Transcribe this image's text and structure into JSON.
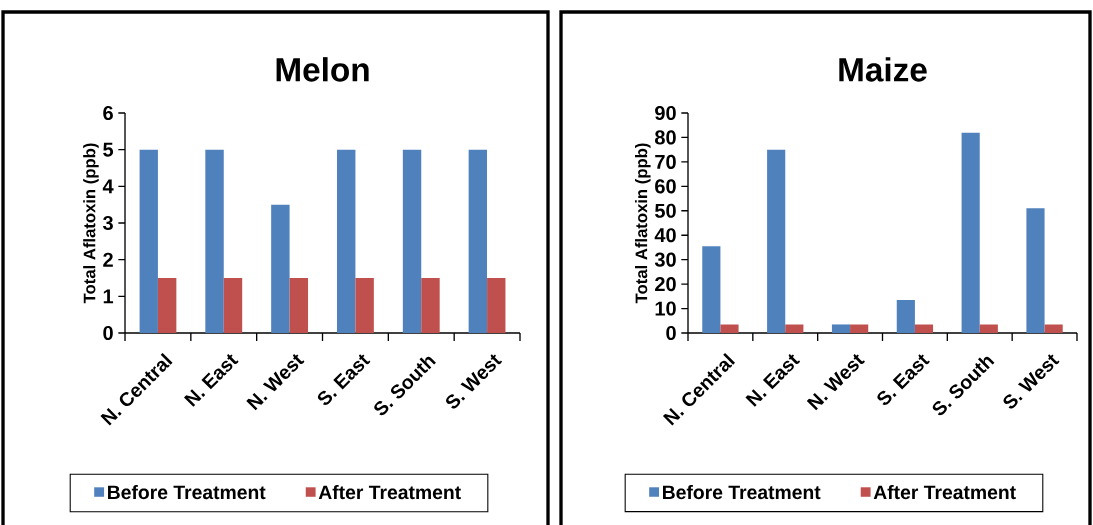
{
  "chart_data": [
    {
      "type": "bar",
      "title": "Melon",
      "ylabel": "Total Aflatoxin (ppb)",
      "categories": [
        "N. Central",
        "N. East",
        "N. West",
        "S. East",
        "S. South",
        "S. West"
      ],
      "series": [
        {
          "name": "Before Treatment",
          "color": "#4f81bd",
          "values": [
            5,
            5,
            3.5,
            5,
            5,
            5
          ]
        },
        {
          "name": "After Treatment",
          "color": "#c0504d",
          "values": [
            1.5,
            1.5,
            1.5,
            1.5,
            1.5,
            1.5
          ]
        }
      ],
      "ylim": [
        0,
        6
      ],
      "yticks": [
        0,
        1,
        2,
        3,
        4,
        5,
        6
      ],
      "legend": "bottom",
      "grid": false
    },
    {
      "type": "bar",
      "title": "Maize",
      "ylabel": "Total Aflatoxin (ppb)",
      "categories": [
        "N. Central",
        "N. East",
        "N. West",
        "S. East",
        "S. South",
        "S. West"
      ],
      "series": [
        {
          "name": "Before Treatment",
          "color": "#4f81bd",
          "values": [
            35.5,
            75,
            3.5,
            13.5,
            82,
            51
          ]
        },
        {
          "name": "After Treatment",
          "color": "#c0504d",
          "values": [
            3.5,
            3.5,
            3.5,
            3.5,
            3.5,
            3.5
          ]
        }
      ],
      "ylim": [
        0,
        90
      ],
      "yticks": [
        0,
        10,
        20,
        30,
        40,
        50,
        60,
        70,
        80,
        90
      ],
      "legend": "bottom",
      "grid": false
    }
  ]
}
